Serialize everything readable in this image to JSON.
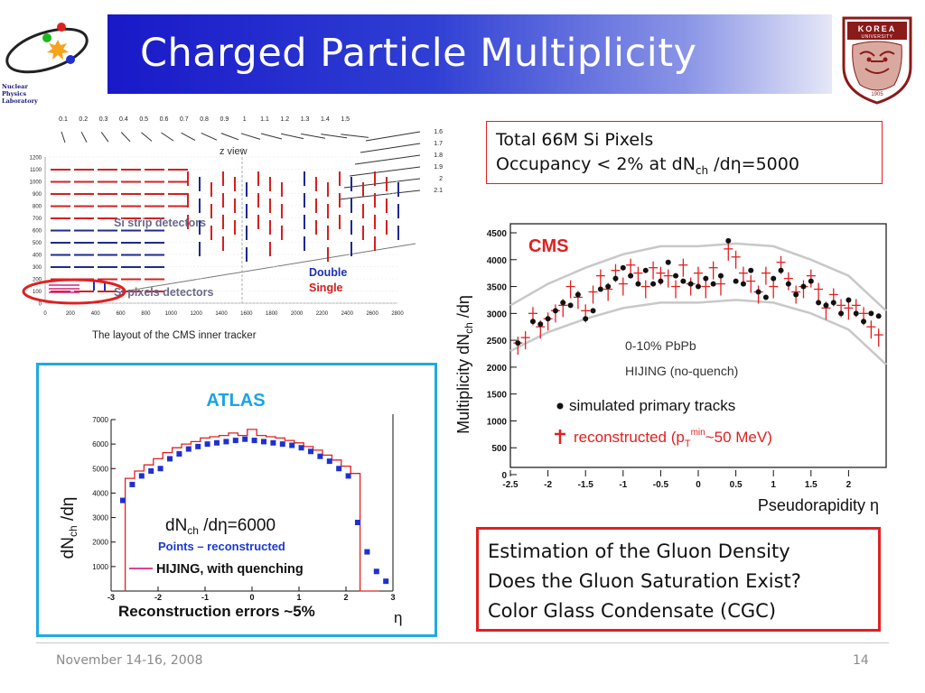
{
  "slide": {
    "title": "Charged Particle Multiplicity",
    "logo_text": [
      "Nuclear",
      "Physics",
      "Laboratory"
    ],
    "university_banner": "KOREA",
    "university_sub": "UNIVERSITY",
    "university_year": "1905"
  },
  "tracker": {
    "eta_top": [
      "0.1",
      "0.2",
      "0.3",
      "0.4",
      "0.5",
      "0.6",
      "0.7",
      "0.8",
      "0.9",
      "1",
      "1.1",
      "1.2",
      "1.3",
      "1.4",
      "1.5"
    ],
    "eta_right": [
      "1.6",
      "1.7",
      "1.8",
      "1.9",
      "2",
      "2.1"
    ],
    "view_label": "z view",
    "y_ticks": [
      "1200",
      "1100",
      "1000",
      "900",
      "800",
      "700",
      "600",
      "500",
      "400",
      "300",
      "200",
      "100",
      "0"
    ],
    "x_ticks": [
      "0",
      "200",
      "400",
      "600",
      "800",
      "1000",
      "1200",
      "1400",
      "1600",
      "1800",
      "2000",
      "2200",
      "2400",
      "2600",
      "2800"
    ],
    "strip_label": "Si strip detectors",
    "pixel_label": "Si pixels detectors",
    "double_label": "Double",
    "single_label": "Single",
    "caption": "The layout of the CMS inner tracker"
  },
  "atlas": {
    "title": "ATLAS",
    "y_axis_main": "dN",
    "y_axis_sub": "ch",
    "y_axis_rest": " /dη",
    "y_ticks": [
      "7000",
      "6000",
      "5000",
      "4000",
      "3000",
      "2000",
      "1000"
    ],
    "x_ticks": [
      "-3",
      "-2",
      "-1",
      "0",
      "1",
      "2",
      "3"
    ],
    "density_main": "dN",
    "density_sub": "ch",
    "density_rest": " /dη=6000",
    "legend_points": "Points – reconstructed",
    "legend_hijing": "HIJING, with quenching",
    "errors_note": "Reconstruction errors ~5%",
    "x_symbol": "η"
  },
  "cms": {
    "label": "CMS",
    "y_axis_main": "Multiplicity dN",
    "y_axis_sub": "ch",
    "y_axis_rest": " /dη",
    "x_axis": "Pseudorapidity η",
    "y_ticks": [
      "4500",
      "4000",
      "3500",
      "3000",
      "2500",
      "2000",
      "1500",
      "1000",
      "500",
      "0"
    ],
    "x_ticks": [
      "-2.5",
      "-2",
      "-1.5",
      "-1",
      "-0.5",
      "0",
      "0.5",
      "1",
      "1.5",
      "2"
    ],
    "annotation_1": "0-10% PbPb",
    "annotation_2": "HIJING (no-quench)",
    "legend_simulated": "simulated primary tracks",
    "legend_reconstructed": "reconstructed (p",
    "legend_T": "T",
    "legend_min": "min",
    "legend_tail": "~50 MeV)"
  },
  "pixel_box": {
    "line1": "Total 66M Si Pixels",
    "line2_a": "Occupancy < 2% at dN",
    "line2_sub": "ch",
    "line2_b": " /dη=5000"
  },
  "gluon_box": {
    "line1": "Estimation of the Gluon Density",
    "line2": "Does the Gluon Saturation Exist?",
    "line3": "Color Glass Condensate (CGC)"
  },
  "footer": {
    "date": "November 14-16, 2008",
    "page": "14"
  },
  "colors": {
    "title_blue": "#1919c8",
    "accent_red": "#e02020",
    "atlas_frame": "#21a9e1",
    "atlas_title": "#1aa3e8",
    "cms_red": "#e02020"
  },
  "chart_data": [
    {
      "type": "scatter",
      "title": "CMS",
      "xlabel": "Pseudorapidity η",
      "ylabel": "Multiplicity dNch /dη",
      "xlim": [
        -2.5,
        2.5
      ],
      "ylim": [
        0,
        4500
      ],
      "series": [
        {
          "name": "simulated primary tracks",
          "x": [
            -2.4,
            -2.2,
            -2.1,
            -2.0,
            -1.9,
            -1.8,
            -1.7,
            -1.6,
            -1.5,
            -1.4,
            -1.3,
            -1.2,
            -1.1,
            -1.0,
            -0.9,
            -0.8,
            -0.7,
            -0.6,
            -0.5,
            -0.4,
            -0.3,
            -0.2,
            -0.1,
            0.0,
            0.1,
            0.2,
            0.3,
            0.4,
            0.5,
            0.6,
            0.7,
            0.8,
            0.9,
            1.0,
            1.1,
            1.2,
            1.3,
            1.4,
            1.5,
            1.6,
            1.7,
            1.8,
            1.9,
            2.0,
            2.1,
            2.2,
            2.3,
            2.4
          ],
          "y": [
            2450,
            2850,
            2800,
            2900,
            3050,
            3200,
            3150,
            3350,
            2900,
            3050,
            3450,
            3500,
            3650,
            3850,
            3700,
            3550,
            3800,
            3550,
            3600,
            3950,
            3700,
            3600,
            3550,
            3500,
            3650,
            3550,
            3700,
            4350,
            3600,
            3550,
            3800,
            3400,
            3300,
            3650,
            3800,
            3550,
            3350,
            3500,
            3600,
            3200,
            3150,
            3200,
            3000,
            3250,
            3000,
            2850,
            3000,
            2950
          ]
        },
        {
          "name": "reconstructed (pTmin~50 MeV)",
          "x": [
            -2.4,
            -2.3,
            -2.2,
            -2.1,
            -2.0,
            -1.9,
            -1.8,
            -1.7,
            -1.6,
            -1.5,
            -1.4,
            -1.3,
            -1.2,
            -1.1,
            -1.0,
            -0.9,
            -0.8,
            -0.7,
            -0.6,
            -0.5,
            -0.4,
            -0.3,
            -0.2,
            -0.1,
            0.0,
            0.1,
            0.2,
            0.3,
            0.4,
            0.5,
            0.6,
            0.7,
            0.8,
            0.9,
            1.0,
            1.1,
            1.2,
            1.3,
            1.4,
            1.5,
            1.6,
            1.7,
            1.8,
            1.9,
            2.0,
            2.1,
            2.2,
            2.3,
            2.4
          ],
          "y": [
            2400,
            2500,
            2950,
            2700,
            2850,
            3000,
            3100,
            3450,
            3250,
            3000,
            3350,
            3650,
            3400,
            3750,
            3500,
            3850,
            3700,
            3450,
            3800,
            3700,
            3650,
            3450,
            3850,
            3500,
            3700,
            3450,
            3800,
            3500,
            4150,
            4000,
            3700,
            3550,
            3350,
            3700,
            3450,
            3900,
            3600,
            3350,
            3450,
            3650,
            3400,
            3050,
            3300,
            3100,
            3050,
            3100,
            2950,
            2700,
            2550
          ]
        },
        {
          "name": "HIJING band upper",
          "x": [
            -2.5,
            -2.0,
            -1.5,
            -1.0,
            -0.5,
            0.0,
            0.5,
            1.0,
            1.5,
            2.0,
            2.5
          ],
          "y": [
            3150,
            3550,
            3850,
            4100,
            4250,
            4250,
            4300,
            4250,
            4000,
            3700,
            3050
          ]
        },
        {
          "name": "HIJING band lower",
          "x": [
            -2.5,
            -2.0,
            -1.5,
            -1.0,
            -0.5,
            0.0,
            0.5,
            1.0,
            1.5,
            2.0,
            2.5
          ],
          "y": [
            2300,
            2650,
            2900,
            3100,
            3200,
            3200,
            3250,
            3200,
            3000,
            2700,
            2050
          ]
        }
      ]
    },
    {
      "type": "scatter",
      "title": "ATLAS",
      "xlabel": "η",
      "ylabel": "dNch /dη",
      "xlim": [
        -3,
        3
      ],
      "ylim": [
        0,
        7000
      ],
      "series": [
        {
          "name": "Points – reconstructed",
          "x": [
            -2.75,
            -2.55,
            -2.35,
            -2.15,
            -1.95,
            -1.75,
            -1.55,
            -1.35,
            -1.15,
            -0.95,
            -0.75,
            -0.55,
            -0.35,
            -0.15,
            0.05,
            0.25,
            0.45,
            0.65,
            0.85,
            1.05,
            1.25,
            1.45,
            1.65,
            1.85,
            2.05,
            2.25,
            2.45,
            2.65,
            2.85
          ],
          "y": [
            3700,
            4350,
            4700,
            4900,
            5000,
            5400,
            5600,
            5800,
            5900,
            6000,
            6050,
            6100,
            6150,
            6200,
            6150,
            6100,
            6050,
            6000,
            5950,
            5850,
            5700,
            5500,
            5300,
            5000,
            4700,
            2800,
            1600,
            800,
            400
          ]
        },
        {
          "name": "HIJING, with quenching",
          "x": [
            -2.6,
            -2.4,
            -2.2,
            -2.0,
            -1.8,
            -1.6,
            -1.4,
            -1.2,
            -1.0,
            -0.8,
            -0.6,
            -0.4,
            -0.2,
            0.0,
            0.2,
            0.4,
            0.6,
            0.8,
            1.0,
            1.2,
            1.4,
            1.6,
            1.8,
            2.0,
            2.2,
            2.4,
            2.6
          ],
          "y": [
            4600,
            4900,
            5150,
            5400,
            5650,
            5850,
            6000,
            6100,
            6250,
            6300,
            6350,
            6450,
            6350,
            6600,
            6350,
            6300,
            6250,
            6150,
            6050,
            5900,
            5750,
            5550,
            5350,
            5100,
            4800,
            0,
            0
          ]
        }
      ]
    }
  ]
}
